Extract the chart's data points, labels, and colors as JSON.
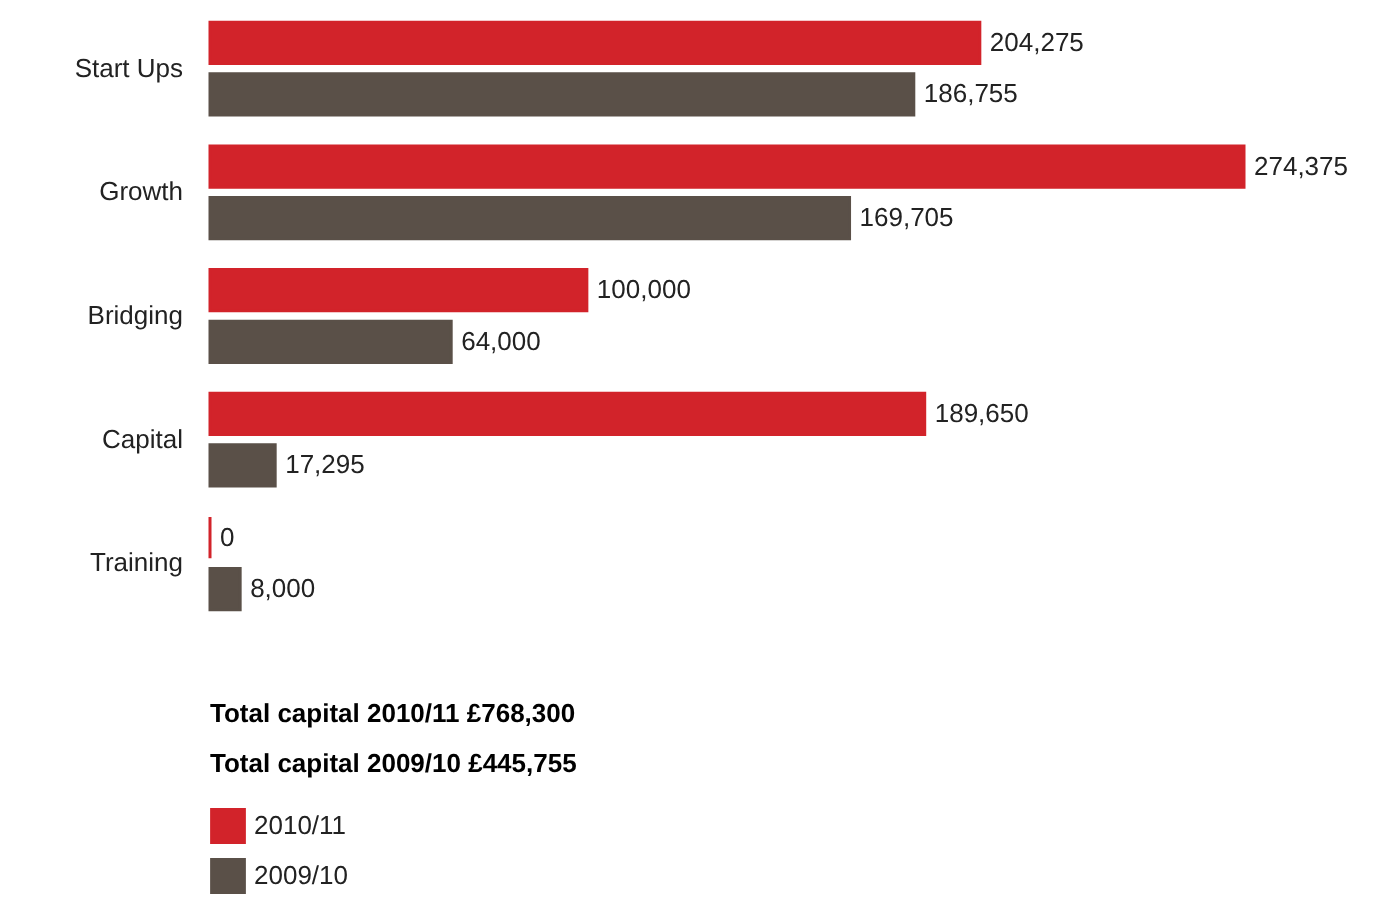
{
  "chart_data": {
    "type": "bar",
    "orientation": "horizontal",
    "categories": [
      "Start Ups",
      "Growth",
      "Bridging",
      "Capital",
      "Training"
    ],
    "series": [
      {
        "name": "2010/11",
        "color": "#d2232a",
        "values": [
          204275,
          274375,
          100000,
          189650,
          0
        ],
        "value_labels": [
          "204,275",
          "274,375",
          "100,000",
          "189,650",
          "0"
        ]
      },
      {
        "name": "2009/10",
        "color": "#5a5048",
        "values": [
          186755,
          169705,
          64000,
          17295,
          8000
        ],
        "value_labels": [
          "186,755",
          "169,705",
          "64,000",
          "17,295",
          "8,000"
        ]
      }
    ],
    "legend": "bottom left",
    "annotations": [
      "Total capital 2010/11 £768,300",
      "Total capital 2009/10 £445,755"
    ]
  }
}
